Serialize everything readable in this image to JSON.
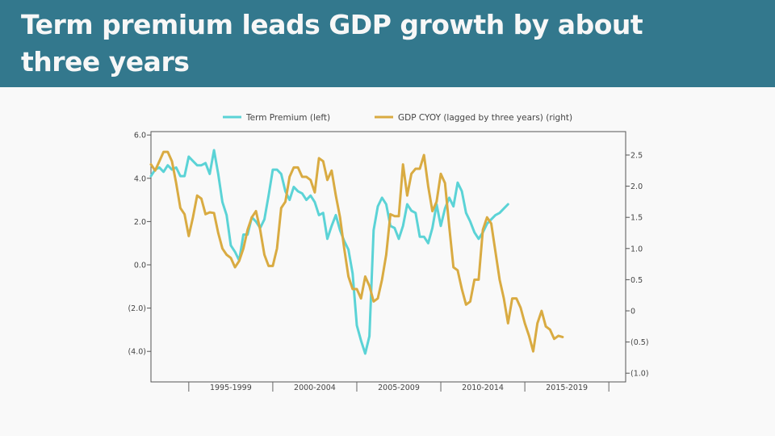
{
  "header": {
    "title": "Term premium leads GDP growth by about three years",
    "background": "#33788d"
  },
  "chart_data": {
    "type": "line",
    "title": "Term premium leads GDP growth by about three years",
    "legend_position": "top",
    "x_categories": [
      "1995-1999",
      "2000-2004",
      "2005-2009",
      "2010-2014",
      "2015-2019"
    ],
    "x_range": [
      1992.75,
      2021.0
    ],
    "left_axis": {
      "ylim": [
        -5.4,
        6.0
      ],
      "ticks": [
        6.0,
        4.0,
        2.0,
        0.0,
        -2.0,
        -4.0
      ],
      "tick_labels": [
        "6.0",
        "4.0",
        "2.0",
        "0.0",
        "(2.0)",
        "(4.0)"
      ]
    },
    "right_axis": {
      "ylim": [
        -1.1,
        2.85
      ],
      "ticks": [
        2.5,
        2.0,
        1.5,
        1.0,
        0.5,
        0,
        -0.5,
        -1.0
      ],
      "tick_labels": [
        "2.5",
        "2.0",
        "1.5",
        "1.0",
        "0.5",
        "0",
        "(0.5)",
        "(1.0)"
      ]
    },
    "grid": false,
    "series": [
      {
        "name": "Term Premium (left)",
        "axis": "left",
        "color": "#5bd3d6",
        "x_start": 1992.75,
        "x_step": 0.25,
        "values": [
          4.1,
          4.4,
          4.5,
          4.3,
          4.6,
          4.4,
          4.5,
          4.1,
          4.1,
          5.0,
          4.8,
          4.6,
          4.6,
          4.7,
          4.2,
          5.3,
          4.2,
          2.9,
          2.3,
          0.9,
          0.6,
          0.2,
          1.4,
          1.4,
          2.2,
          2.0,
          1.7,
          2.1,
          3.2,
          4.4,
          4.4,
          4.2,
          3.4,
          3.0,
          3.6,
          3.4,
          3.3,
          3.0,
          3.2,
          2.9,
          2.3,
          2.4,
          1.2,
          1.8,
          2.3,
          1.6,
          1.1,
          0.7,
          -0.4,
          -2.8,
          -3.5,
          -4.1,
          -3.3,
          1.6,
          2.7,
          3.1,
          2.8,
          1.8,
          1.7,
          1.2,
          1.8,
          2.8,
          2.5,
          2.4,
          1.3,
          1.3,
          1.0,
          1.7,
          2.8,
          1.8,
          2.6,
          3.1,
          2.7,
          3.8,
          3.4,
          2.4,
          2.0,
          1.5,
          1.2,
          1.5,
          1.9,
          2.1,
          2.3,
          2.4,
          2.6,
          2.8
        ]
      },
      {
        "name": "GDP CYOY (lagged by three years) (right)",
        "axis": "right",
        "color": "#d9ab42",
        "x_start": 1992.75,
        "x_step": 0.25,
        "values": [
          2.35,
          2.25,
          2.4,
          2.55,
          2.55,
          2.4,
          2.05,
          1.65,
          1.55,
          1.2,
          1.5,
          1.85,
          1.8,
          1.55,
          1.58,
          1.57,
          1.25,
          1.0,
          0.9,
          0.85,
          0.7,
          0.8,
          1.0,
          1.3,
          1.5,
          1.6,
          1.3,
          0.9,
          0.72,
          0.72,
          1.0,
          1.65,
          1.75,
          2.15,
          2.3,
          2.3,
          2.15,
          2.15,
          2.1,
          1.9,
          2.45,
          2.4,
          2.1,
          2.25,
          1.85,
          1.5,
          1.0,
          0.55,
          0.35,
          0.35,
          0.2,
          0.55,
          0.4,
          0.15,
          0.2,
          0.5,
          0.9,
          1.55,
          1.52,
          1.52,
          2.35,
          1.85,
          2.2,
          2.28,
          2.28,
          2.5,
          2.0,
          1.6,
          1.75,
          2.2,
          2.05,
          1.35,
          0.7,
          0.65,
          0.35,
          0.1,
          0.15,
          0.5,
          0.5,
          1.3,
          1.5,
          1.4,
          0.95,
          0.5,
          0.2,
          -0.2,
          0.2,
          0.2,
          0.05,
          -0.2,
          -0.4,
          -0.65,
          -0.2,
          0.0,
          -0.25,
          -0.3,
          -0.45,
          -0.4,
          -0.42
        ]
      }
    ]
  }
}
